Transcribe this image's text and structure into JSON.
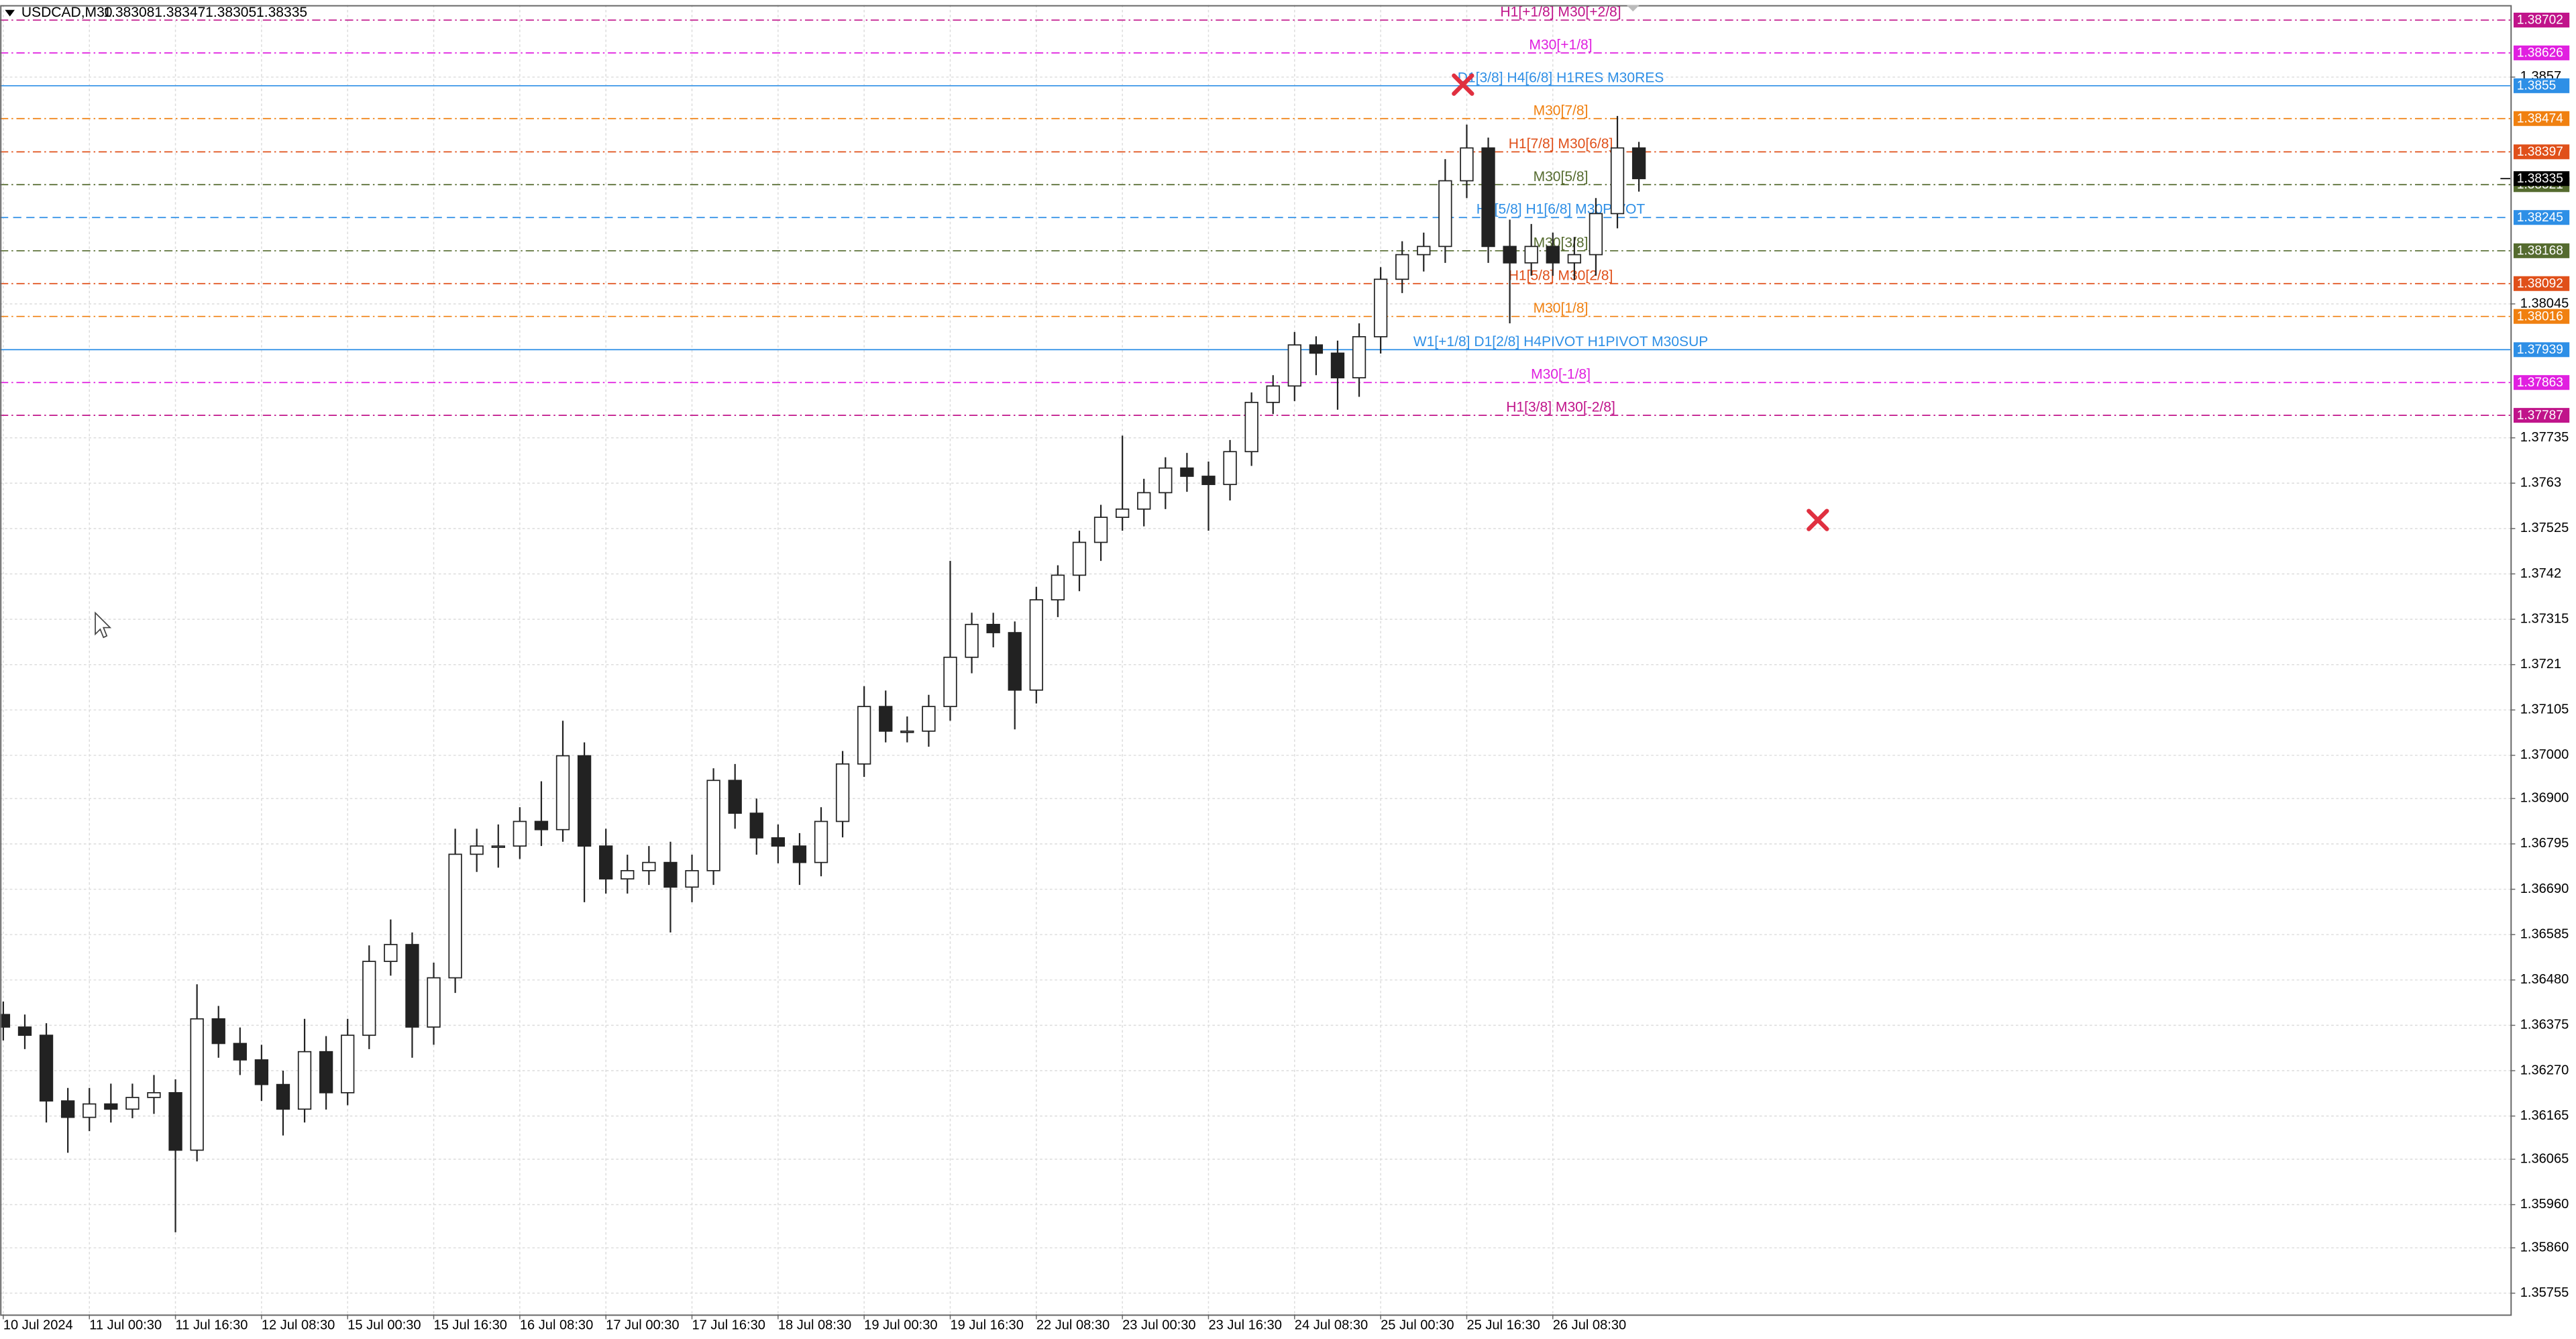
{
  "header": {
    "symbol": "USDCAD,M30",
    "open": 1.38308,
    "high": 1.38347,
    "low": 1.38305,
    "close": 1.38335
  },
  "chart_data": {
    "type": "candlestick",
    "categories": [
      "10 Jul 2024",
      null,
      null,
      null,
      "11 Jul 00:30",
      null,
      null,
      null,
      "11 Jul 16:30",
      null,
      null,
      null,
      "12 Jul 08:30",
      null,
      null,
      null,
      "15 Jul 00:30",
      null,
      null,
      null,
      "15 Jul 16:30",
      null,
      null,
      null,
      "16 Jul 08:30",
      null,
      null,
      null,
      "17 Jul 00:30",
      null,
      null,
      null,
      "17 Jul 16:30",
      null,
      null,
      null,
      "18 Jul 08:30",
      null,
      null,
      null,
      "19 Jul 00:30",
      null,
      null,
      null,
      "19 Jul 16:30",
      null,
      null,
      null,
      "22 Jul 08:30",
      null,
      null,
      null,
      "23 Jul 00:30",
      null,
      null,
      null,
      "23 Jul 16:30",
      null,
      null,
      null,
      "24 Jul 08:30",
      null,
      null,
      null,
      "25 Jul 00:30",
      null,
      null,
      null,
      "25 Jul 16:30",
      null,
      null,
      null,
      "26 Jul 08:30",
      null,
      null,
      null,
      null
    ],
    "open": [
      1.364,
      1.36371,
      1.36352,
      1.362,
      1.36162,
      1.36193,
      1.36181,
      1.36208,
      1.36219,
      1.36086,
      1.3639,
      1.36333,
      1.36295,
      1.36238,
      1.36181,
      1.36314,
      1.36219,
      1.36352,
      1.36523,
      1.36562,
      1.36371,
      1.36485,
      1.36771,
      1.3679,
      1.3679,
      1.36847,
      1.36828,
      1.36999,
      1.3679,
      1.36714,
      1.36733,
      1.36752,
      1.36695,
      1.36733,
      1.36942,
      1.36866,
      1.36809,
      1.3679,
      1.36752,
      1.36847,
      1.3698,
      1.37113,
      1.37056,
      1.37056,
      1.37113,
      1.37227,
      1.37303,
      1.37284,
      1.37151,
      1.3736,
      1.37417,
      1.37493,
      1.37551,
      1.3757,
      1.37608,
      1.37665,
      1.37646,
      1.37627,
      1.37703,
      1.37817,
      1.37855,
      1.3795,
      1.37931,
      1.37874,
      1.37969,
      1.38102,
      1.38159,
      1.38178,
      1.3833,
      1.38406,
      1.38178,
      1.3814,
      1.38178,
      1.3814,
      1.38159,
      1.38254,
      1.38406
    ],
    "high": [
      1.3643,
      1.364,
      1.3638,
      1.3623,
      1.3623,
      1.3624,
      1.3624,
      1.3626,
      1.3625,
      1.3647,
      1.3642,
      1.3637,
      1.3633,
      1.3627,
      1.3639,
      1.3635,
      1.3639,
      1.3656,
      1.3662,
      1.3659,
      1.3652,
      1.3683,
      1.3683,
      1.3684,
      1.3688,
      1.3694,
      1.3708,
      1.3703,
      1.3683,
      1.3677,
      1.3679,
      1.368,
      1.3677,
      1.3697,
      1.3698,
      1.369,
      1.3684,
      1.3682,
      1.3688,
      1.3701,
      1.3716,
      1.3715,
      1.3709,
      1.3714,
      1.3745,
      1.3733,
      1.3733,
      1.3731,
      1.3739,
      1.3744,
      1.3752,
      1.3758,
      1.3774,
      1.3764,
      1.3769,
      1.377,
      1.3768,
      1.3773,
      1.3784,
      1.3788,
      1.3798,
      1.3797,
      1.3796,
      1.38,
      1.3813,
      1.3819,
      1.3821,
      1.3838,
      1.3846,
      1.3843,
      1.3824,
      1.3823,
      1.3821,
      1.382,
      1.3829,
      1.3848,
      1.3842
    ],
    "low": [
      1.3634,
      1.3632,
      1.3615,
      1.3608,
      1.3613,
      1.3615,
      1.3616,
      1.3617,
      1.35896,
      1.3606,
      1.363,
      1.3626,
      1.362,
      1.3612,
      1.3615,
      1.3618,
      1.3619,
      1.3632,
      1.3649,
      1.363,
      1.3633,
      1.3645,
      1.3673,
      1.3674,
      1.3676,
      1.3679,
      1.368,
      1.3666,
      1.3668,
      1.3668,
      1.367,
      1.3659,
      1.3666,
      1.367,
      1.3683,
      1.3677,
      1.3675,
      1.367,
      1.3672,
      1.3681,
      1.3695,
      1.3703,
      1.3703,
      1.3702,
      1.3708,
      1.3719,
      1.3725,
      1.3706,
      1.3712,
      1.3732,
      1.3738,
      1.3745,
      1.3752,
      1.3753,
      1.3757,
      1.3761,
      1.3752,
      1.3759,
      1.3767,
      1.3779,
      1.3782,
      1.3788,
      1.378,
      1.3783,
      1.3793,
      1.3807,
      1.3812,
      1.3814,
      1.3829,
      1.3814,
      1.38,
      1.3811,
      1.3811,
      1.381,
      1.3811,
      1.3822,
      1.38305
    ],
    "close": [
      1.36371,
      1.36352,
      1.362,
      1.36162,
      1.36193,
      1.36181,
      1.36208,
      1.36219,
      1.36086,
      1.3639,
      1.36333,
      1.36295,
      1.36238,
      1.36181,
      1.36314,
      1.36219,
      1.36352,
      1.36523,
      1.36562,
      1.36371,
      1.36485,
      1.36771,
      1.3679,
      1.3679,
      1.36847,
      1.36828,
      1.36999,
      1.3679,
      1.36714,
      1.36733,
      1.36752,
      1.36695,
      1.36733,
      1.36942,
      1.36866,
      1.36809,
      1.3679,
      1.36752,
      1.36847,
      1.3698,
      1.37113,
      1.37056,
      1.37056,
      1.37113,
      1.37227,
      1.37303,
      1.37284,
      1.37151,
      1.3736,
      1.37417,
      1.37493,
      1.37551,
      1.3757,
      1.37608,
      1.37665,
      1.37646,
      1.37627,
      1.37703,
      1.37817,
      1.37855,
      1.3795,
      1.37931,
      1.37874,
      1.37969,
      1.38102,
      1.38159,
      1.38178,
      1.3833,
      1.38406,
      1.38178,
      1.3814,
      1.38178,
      1.3814,
      1.38159,
      1.38254,
      1.38406,
      1.38335
    ],
    "ylim": [
      1.35706,
      1.38737
    ],
    "yticks": [
      1.3857,
      1.38045,
      1.37735,
      1.3763,
      1.37525,
      1.3742,
      1.37315,
      1.3721,
      1.37105,
      {
        "value": 1.37,
        "label": "1.37000"
      },
      {
        "value": 1.369,
        "label": "1.36900"
      },
      1.36795,
      {
        "value": 1.3669,
        "label": "1.36690"
      },
      1.36585,
      {
        "value": 1.3648,
        "label": "1.36480"
      },
      1.36375,
      {
        "value": 1.3627,
        "label": "1.36270"
      },
      1.36165,
      1.36065,
      {
        "value": 1.3596,
        "label": "1.35960"
      },
      {
        "value": 1.3586,
        "label": "1.35860"
      },
      1.35755
    ],
    "grid": true,
    "current_price": 1.38335,
    "levels": [
      {
        "price": 1.38702,
        "label": "H1[+1/8] M30[+2/8]",
        "color": "#c0148a",
        "style": "dashdot"
      },
      {
        "price": 1.38626,
        "label": "M30[+1/8]",
        "color": "#e020e0",
        "style": "dashdot"
      },
      {
        "price": 1.3855,
        "label": "D1[3/8] H4[6/8] H1RES M30RES",
        "color": "#2e8fe6",
        "style": "solid"
      },
      {
        "price": 1.38474,
        "label": "M30[7/8]",
        "color": "#f08010",
        "style": "dashdot"
      },
      {
        "price": 1.38397,
        "label": "H1[7/8] M30[6/8]",
        "color": "#e0501a",
        "style": "dashdot"
      },
      {
        "price": 1.38321,
        "label": "M30[5/8]",
        "color": "#556b2f",
        "style": "dashdot"
      },
      {
        "price": 1.38245,
        "label": "H4[5/8] H1[6/8] M30PIVOT",
        "color": "#2e8fe6",
        "style": "dashed"
      },
      {
        "price": 1.38168,
        "label": "M30[3/8]",
        "color": "#556b2f",
        "style": "dashdot"
      },
      {
        "price": 1.38092,
        "label": "H1[5/8] M30[2/8]",
        "color": "#e0501a",
        "style": "dashdot"
      },
      {
        "price": 1.38016,
        "label": "M30[1/8]",
        "color": "#f08010",
        "style": "dashdot"
      },
      {
        "price": 1.37939,
        "label": "W1[+1/8] D1[2/8] H4PIVOT H1PIVOT M30SUP",
        "color": "#2e8fe6",
        "style": "solid"
      },
      {
        "price": 1.37863,
        "label": "M30[-1/8]",
        "color": "#e020e0",
        "style": "dashdot"
      },
      {
        "price": 1.37787,
        "label": "H1[3/8] M30[-2/8]",
        "color": "#c0148a",
        "style": "dashdot"
      }
    ]
  }
}
